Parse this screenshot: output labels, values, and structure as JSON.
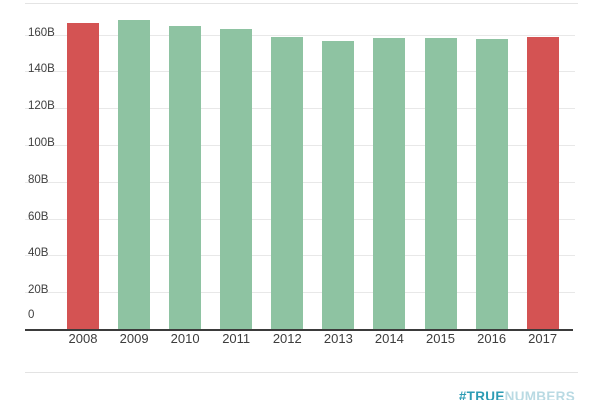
{
  "chart_data": {
    "type": "bar",
    "title": "",
    "xlabel": "",
    "ylabel": "",
    "categories": [
      "2008",
      "2009",
      "2010",
      "2011",
      "2012",
      "2013",
      "2014",
      "2015",
      "2016",
      "2017"
    ],
    "values": [
      166.1,
      167.8,
      164.7,
      163.2,
      158.5,
      156.5,
      158.0,
      158.0,
      157.8,
      158.7
    ],
    "bar_colors": [
      "#d45353",
      "#8ec3a2",
      "#8ec3a2",
      "#8ec3a2",
      "#8ec3a2",
      "#8ec3a2",
      "#8ec3a2",
      "#8ec3a2",
      "#8ec3a2",
      "#d45353"
    ],
    "y_ticks": [
      {
        "value": 0,
        "label": "0"
      },
      {
        "value": 20,
        "label": "20B"
      },
      {
        "value": 40,
        "label": "40B"
      },
      {
        "value": 60,
        "label": "60B"
      },
      {
        "value": 80,
        "label": "80B"
      },
      {
        "value": 100,
        "label": "100B"
      },
      {
        "value": 120,
        "label": "120B"
      },
      {
        "value": 140,
        "label": "140B"
      },
      {
        "value": 160,
        "label": "160B"
      }
    ],
    "ylim": [
      0,
      177
    ],
    "grid": true,
    "legend": null
  },
  "colors": {
    "highlight_red": "#d45353",
    "bar_green": "#8ec3a2",
    "gridline": "#e8e8e8",
    "axis_line": "#3b3b3b",
    "tick_text": "#3f3f3f",
    "watermark_dark": "#2d9cb4",
    "watermark_light": "#b9dae3"
  },
  "watermark": {
    "prefix": "#TRUE",
    "suffix": "NUMBERS"
  }
}
